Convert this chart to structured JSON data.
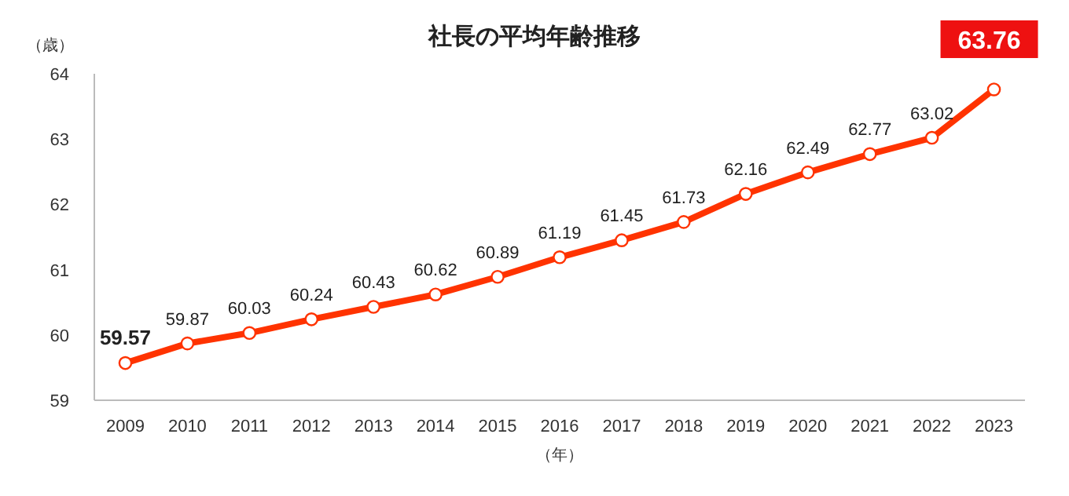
{
  "chart_data": {
    "type": "line",
    "title": "社長の平均年齢推移",
    "ylabel": "（歳）",
    "xlabel": "（年）",
    "categories": [
      "2009",
      "2010",
      "2011",
      "2012",
      "2013",
      "2014",
      "2015",
      "2016",
      "2017",
      "2018",
      "2019",
      "2020",
      "2021",
      "2022",
      "2023"
    ],
    "series": [
      {
        "color": "#ff3300",
        "values": [
          59.57,
          59.87,
          60.03,
          60.24,
          60.43,
          60.62,
          60.89,
          61.19,
          61.45,
          61.73,
          62.16,
          62.49,
          62.77,
          63.02,
          63.76
        ]
      }
    ],
    "ylim": [
      59,
      64
    ],
    "yticks": [
      59,
      60,
      61,
      62,
      63,
      64
    ],
    "grid": false,
    "marker": "circle",
    "line_style": "solid",
    "data_labels": true
  }
}
